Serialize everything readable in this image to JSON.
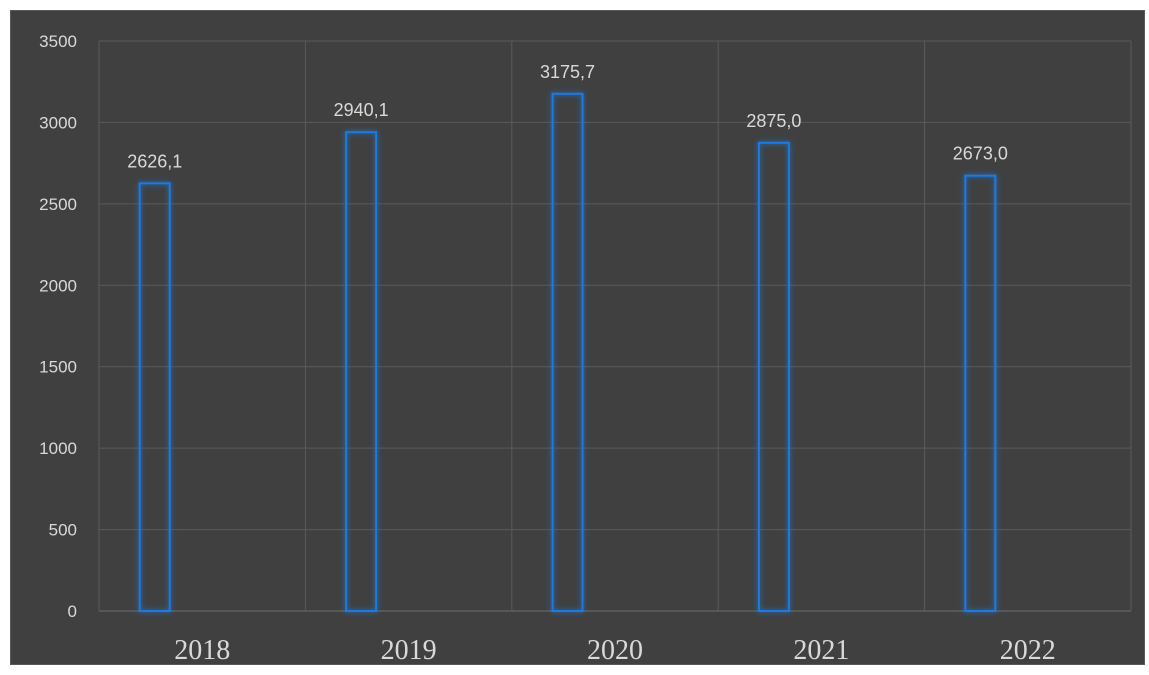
{
  "chart_data": {
    "type": "bar",
    "categories": [
      "2018",
      "2019",
      "2020",
      "2021",
      "2022"
    ],
    "values": [
      2626.1,
      2940.1,
      3175.7,
      2875.0,
      2673.0
    ],
    "value_labels": [
      "2626,1",
      "2940,1",
      "3175,7",
      "2875,0",
      "2673,0"
    ],
    "title": "",
    "xlabel": "",
    "ylabel": "",
    "ylim": [
      0,
      3500
    ],
    "yticks": [
      0,
      500,
      1000,
      1500,
      2000,
      2500,
      3000,
      3500
    ],
    "grid": true,
    "legend": "none",
    "colors": {
      "background": "#404040",
      "bar_outline": "#1f7ae0",
      "bar_glow": "#2f8fff",
      "grid": "#5a5a5a",
      "text": "#d9d9d9"
    }
  }
}
